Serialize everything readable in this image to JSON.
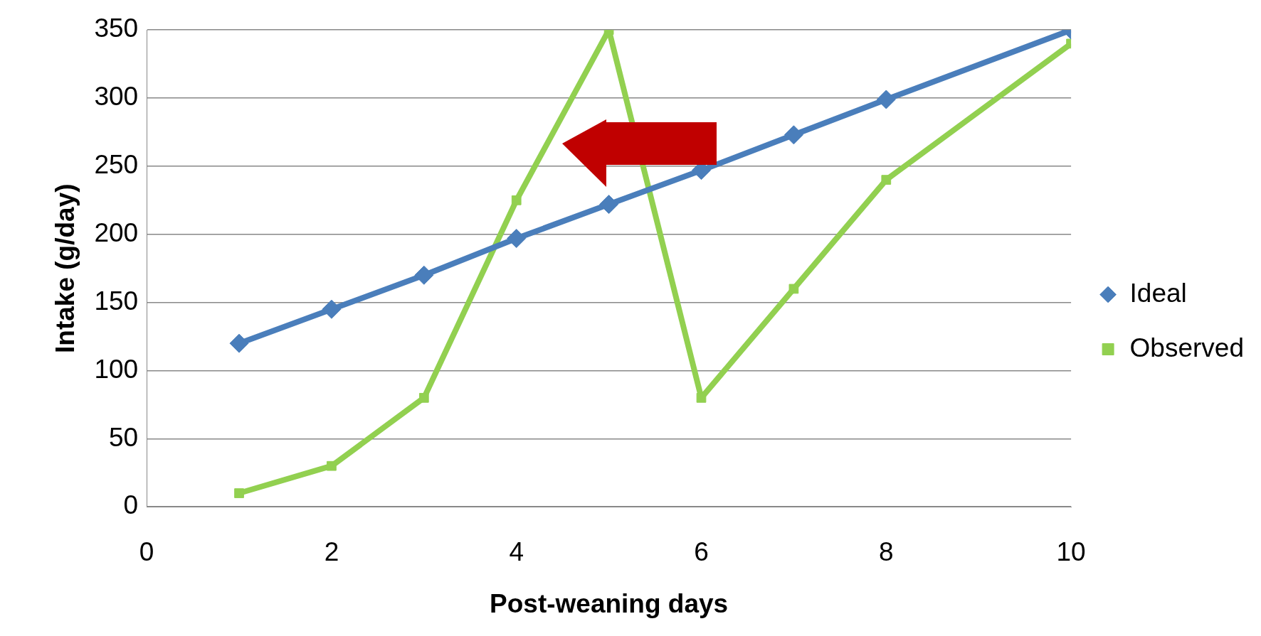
{
  "chart_data": {
    "type": "line",
    "xlabel": "Post-weaning days",
    "ylabel": "Intake (g/day)",
    "xlim": [
      0,
      10
    ],
    "xticks": [
      0,
      2,
      4,
      6,
      8,
      10
    ],
    "ylim": [
      0,
      350
    ],
    "yticks": [
      0,
      50,
      100,
      150,
      200,
      250,
      300,
      350
    ],
    "grid": "y",
    "legend": "right",
    "line_style": "solid",
    "series": [
      {
        "name": "Ideal",
        "color": "#4a7ebb",
        "marker": "diamond",
        "x": [
          1,
          2,
          3,
          4,
          5,
          6,
          7,
          8,
          10
        ],
        "values": [
          120,
          145,
          170,
          197,
          222,
          247,
          273,
          299,
          350
        ]
      },
      {
        "name": "Observed",
        "color": "#92d050",
        "marker": "square",
        "x": [
          1,
          2,
          3,
          4,
          5,
          6,
          7,
          8,
          10
        ],
        "values": [
          10,
          30,
          80,
          225,
          350,
          80,
          160,
          240,
          340
        ]
      }
    ]
  }
}
